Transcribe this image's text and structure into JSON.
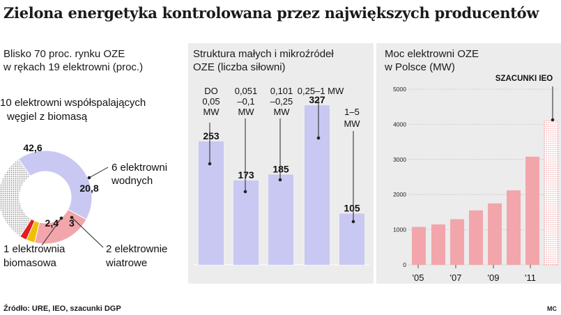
{
  "title": "Zielona energetyka kontrolowana przez największych producentów",
  "source": "Źródło: URE, IEO, szacunki DGP",
  "credit": "MC",
  "colors": {
    "blue": "#c8c8f2",
    "pink": "#f2a6ab",
    "red": "#e01e23",
    "yellow": "#f0c000",
    "gray": "#9a9a9a",
    "panel": "#ececec"
  },
  "panels": {
    "donut": {
      "subtitle": [
        "Blisko 70 proc. rynku OZE",
        "w rękach 19 elektrowni (proc.)"
      ]
    },
    "bar": {
      "subtitle": [
        "Struktura małych i mikroźródeł",
        "OZE  (liczba  siłowni)"
      ]
    },
    "line": {
      "subtitle": [
        "Moc elektrowni OZE",
        "w Polsce (MW)"
      ]
    }
  },
  "chart_data": [
    {
      "type": "pie",
      "title": "Blisko 70 proc. rynku OZE w rękach 19 elektrowni (proc.)",
      "slices": [
        {
          "label": "10 elektrowni współspalających węgiel z biomasą",
          "value": 42.6,
          "value_label": "42,6",
          "color": "#c8c8f2"
        },
        {
          "label": "6 elektrowni wodnych",
          "value": 20.8,
          "value_label": "20,8",
          "color": "#f2a6ab"
        },
        {
          "label": "2 elektrownie wiatrowe",
          "value": 3.0,
          "value_label": "3",
          "color": "#f0c000"
        },
        {
          "label": "1 elektrownia biomasowa",
          "value": 2.4,
          "value_label": "2,4",
          "color": "#e01e23"
        },
        {
          "label": "",
          "value": 31.2,
          "value_label": "",
          "color": "#9a9a9a"
        }
      ]
    },
    {
      "type": "bar",
      "title": "Struktura małych i mikroźródeł OZE  (liczba  siłowni)",
      "categories": [
        [
          "DO",
          "0,05",
          "MW"
        ],
        [
          "0,051",
          "–0,1",
          "MW"
        ],
        [
          "0,101",
          "–0,25",
          "MW"
        ],
        [
          "0,25–1 MW"
        ],
        [
          "1–5",
          "MW"
        ]
      ],
      "values": [
        253,
        173,
        185,
        327,
        105
      ],
      "ylim": [
        0,
        400
      ]
    },
    {
      "type": "bar",
      "title": "Moc elektrowni OZE w Polsce (MW)",
      "x": [
        2005,
        2006,
        2007,
        2008,
        2009,
        2010,
        2011,
        2012
      ],
      "tick_labels": [
        "'05",
        "'07",
        "'09",
        "'11"
      ],
      "values": [
        1080,
        1150,
        1300,
        1550,
        1750,
        2120,
        3080,
        4100
      ],
      "estimated": [
        false,
        false,
        false,
        false,
        false,
        false,
        false,
        true
      ],
      "annotation": "SZACUNKI IEO",
      "y_ticks": [
        "0",
        "1000",
        "2000",
        "3000",
        "4000",
        "5000"
      ],
      "ylim": [
        0,
        5000
      ],
      "grid": true
    }
  ]
}
